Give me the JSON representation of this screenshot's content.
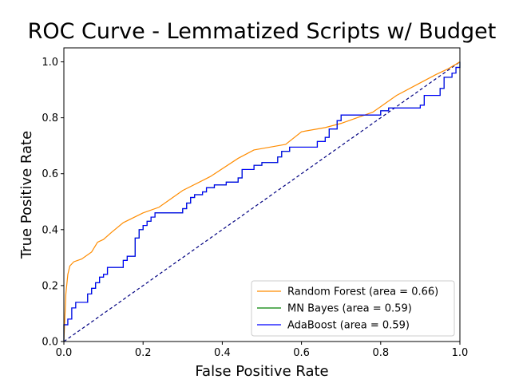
{
  "chart_data": {
    "type": "line",
    "title": "ROC Curve - Lemmatized Scripts w/ Budget",
    "xlabel": "False Positive Rate",
    "ylabel": "True Positive Rate",
    "xlim": [
      0.0,
      1.0
    ],
    "ylim": [
      0.0,
      1.05
    ],
    "xticks": [
      "0.0",
      "0.2",
      "0.4",
      "0.6",
      "0.8",
      "1.0"
    ],
    "yticks": [
      "0.0",
      "0.2",
      "0.4",
      "0.6",
      "0.8",
      "1.0"
    ],
    "grid": false,
    "legend_position": "lower-right",
    "diagonal": {
      "color": "#000080",
      "style": "dashed",
      "points": [
        [
          0,
          0
        ],
        [
          1,
          1
        ]
      ]
    },
    "series": [
      {
        "name": "Random Forest (area = 0.66)",
        "color": "#ff8c00",
        "step": false,
        "points": [
          [
            0.0,
            0.0
          ],
          [
            0.005,
            0.17
          ],
          [
            0.01,
            0.24
          ],
          [
            0.015,
            0.27
          ],
          [
            0.025,
            0.285
          ],
          [
            0.045,
            0.295
          ],
          [
            0.07,
            0.32
          ],
          [
            0.085,
            0.355
          ],
          [
            0.1,
            0.365
          ],
          [
            0.12,
            0.39
          ],
          [
            0.15,
            0.425
          ],
          [
            0.2,
            0.46
          ],
          [
            0.24,
            0.48
          ],
          [
            0.3,
            0.54
          ],
          [
            0.37,
            0.59
          ],
          [
            0.44,
            0.655
          ],
          [
            0.48,
            0.685
          ],
          [
            0.52,
            0.695
          ],
          [
            0.56,
            0.705
          ],
          [
            0.6,
            0.75
          ],
          [
            0.66,
            0.765
          ],
          [
            0.7,
            0.78
          ],
          [
            0.78,
            0.82
          ],
          [
            0.8,
            0.84
          ],
          [
            0.84,
            0.88
          ],
          [
            0.9,
            0.925
          ],
          [
            0.94,
            0.955
          ],
          [
            0.97,
            0.975
          ],
          [
            1.0,
            1.0
          ]
        ]
      },
      {
        "name": "MN Bayes (area = 0.59)",
        "color": "#008000",
        "step": true,
        "points": [
          [
            0.0,
            0.0
          ],
          [
            0.0,
            0.06
          ],
          [
            0.01,
            0.06
          ],
          [
            0.01,
            0.08
          ],
          [
            0.02,
            0.08
          ],
          [
            0.02,
            0.12
          ],
          [
            0.03,
            0.12
          ],
          [
            0.03,
            0.14
          ],
          [
            0.06,
            0.14
          ],
          [
            0.06,
            0.17
          ],
          [
            0.07,
            0.17
          ],
          [
            0.07,
            0.19
          ],
          [
            0.08,
            0.19
          ],
          [
            0.08,
            0.21
          ],
          [
            0.09,
            0.21
          ],
          [
            0.09,
            0.23
          ],
          [
            0.1,
            0.23
          ],
          [
            0.1,
            0.24
          ],
          [
            0.11,
            0.24
          ],
          [
            0.11,
            0.265
          ],
          [
            0.15,
            0.265
          ],
          [
            0.15,
            0.29
          ],
          [
            0.16,
            0.29
          ],
          [
            0.16,
            0.305
          ],
          [
            0.18,
            0.305
          ],
          [
            0.18,
            0.37
          ],
          [
            0.19,
            0.37
          ],
          [
            0.19,
            0.4
          ],
          [
            0.2,
            0.4
          ],
          [
            0.2,
            0.415
          ],
          [
            0.21,
            0.415
          ],
          [
            0.21,
            0.43
          ],
          [
            0.22,
            0.43
          ],
          [
            0.22,
            0.445
          ],
          [
            0.23,
            0.445
          ],
          [
            0.23,
            0.46
          ],
          [
            0.3,
            0.46
          ],
          [
            0.3,
            0.475
          ],
          [
            0.31,
            0.475
          ],
          [
            0.31,
            0.495
          ],
          [
            0.32,
            0.495
          ],
          [
            0.32,
            0.515
          ],
          [
            0.33,
            0.515
          ],
          [
            0.33,
            0.525
          ],
          [
            0.35,
            0.525
          ],
          [
            0.35,
            0.535
          ],
          [
            0.36,
            0.535
          ],
          [
            0.36,
            0.55
          ],
          [
            0.38,
            0.55
          ],
          [
            0.38,
            0.56
          ],
          [
            0.41,
            0.56
          ],
          [
            0.41,
            0.57
          ],
          [
            0.44,
            0.57
          ],
          [
            0.44,
            0.585
          ],
          [
            0.45,
            0.585
          ],
          [
            0.45,
            0.615
          ],
          [
            0.48,
            0.615
          ],
          [
            0.48,
            0.63
          ],
          [
            0.5,
            0.63
          ],
          [
            0.5,
            0.64
          ],
          [
            0.54,
            0.64
          ],
          [
            0.54,
            0.66
          ],
          [
            0.55,
            0.66
          ],
          [
            0.55,
            0.68
          ],
          [
            0.57,
            0.68
          ],
          [
            0.57,
            0.695
          ],
          [
            0.64,
            0.695
          ],
          [
            0.64,
            0.715
          ],
          [
            0.66,
            0.715
          ],
          [
            0.66,
            0.73
          ],
          [
            0.67,
            0.73
          ],
          [
            0.67,
            0.76
          ],
          [
            0.69,
            0.76
          ],
          [
            0.69,
            0.79
          ],
          [
            0.7,
            0.79
          ],
          [
            0.7,
            0.81
          ],
          [
            0.8,
            0.81
          ],
          [
            0.8,
            0.825
          ],
          [
            0.82,
            0.825
          ],
          [
            0.82,
            0.835
          ],
          [
            0.9,
            0.835
          ],
          [
            0.9,
            0.845
          ],
          [
            0.91,
            0.845
          ],
          [
            0.91,
            0.88
          ],
          [
            0.95,
            0.88
          ],
          [
            0.95,
            0.905
          ],
          [
            0.96,
            0.905
          ],
          [
            0.96,
            0.945
          ],
          [
            0.98,
            0.945
          ],
          [
            0.98,
            0.96
          ],
          [
            0.99,
            0.96
          ],
          [
            0.99,
            0.98
          ],
          [
            1.0,
            0.98
          ],
          [
            1.0,
            1.0
          ]
        ]
      },
      {
        "name": "AdaBoost (area = 0.59)",
        "color": "#0000ff",
        "step": true,
        "points": [
          [
            0.0,
            0.0
          ],
          [
            0.0,
            0.06
          ],
          [
            0.01,
            0.06
          ],
          [
            0.01,
            0.08
          ],
          [
            0.02,
            0.08
          ],
          [
            0.02,
            0.12
          ],
          [
            0.03,
            0.12
          ],
          [
            0.03,
            0.14
          ],
          [
            0.06,
            0.14
          ],
          [
            0.06,
            0.17
          ],
          [
            0.07,
            0.17
          ],
          [
            0.07,
            0.19
          ],
          [
            0.08,
            0.19
          ],
          [
            0.08,
            0.21
          ],
          [
            0.09,
            0.21
          ],
          [
            0.09,
            0.23
          ],
          [
            0.1,
            0.23
          ],
          [
            0.1,
            0.24
          ],
          [
            0.11,
            0.24
          ],
          [
            0.11,
            0.265
          ],
          [
            0.15,
            0.265
          ],
          [
            0.15,
            0.29
          ],
          [
            0.16,
            0.29
          ],
          [
            0.16,
            0.305
          ],
          [
            0.18,
            0.305
          ],
          [
            0.18,
            0.37
          ],
          [
            0.19,
            0.37
          ],
          [
            0.19,
            0.4
          ],
          [
            0.2,
            0.4
          ],
          [
            0.2,
            0.415
          ],
          [
            0.21,
            0.415
          ],
          [
            0.21,
            0.43
          ],
          [
            0.22,
            0.43
          ],
          [
            0.22,
            0.445
          ],
          [
            0.23,
            0.445
          ],
          [
            0.23,
            0.46
          ],
          [
            0.3,
            0.46
          ],
          [
            0.3,
            0.475
          ],
          [
            0.31,
            0.475
          ],
          [
            0.31,
            0.495
          ],
          [
            0.32,
            0.495
          ],
          [
            0.32,
            0.515
          ],
          [
            0.33,
            0.515
          ],
          [
            0.33,
            0.525
          ],
          [
            0.35,
            0.525
          ],
          [
            0.35,
            0.535
          ],
          [
            0.36,
            0.535
          ],
          [
            0.36,
            0.55
          ],
          [
            0.38,
            0.55
          ],
          [
            0.38,
            0.56
          ],
          [
            0.41,
            0.56
          ],
          [
            0.41,
            0.57
          ],
          [
            0.44,
            0.57
          ],
          [
            0.44,
            0.585
          ],
          [
            0.45,
            0.585
          ],
          [
            0.45,
            0.615
          ],
          [
            0.48,
            0.615
          ],
          [
            0.48,
            0.63
          ],
          [
            0.5,
            0.63
          ],
          [
            0.5,
            0.64
          ],
          [
            0.54,
            0.64
          ],
          [
            0.54,
            0.66
          ],
          [
            0.55,
            0.66
          ],
          [
            0.55,
            0.68
          ],
          [
            0.57,
            0.68
          ],
          [
            0.57,
            0.695
          ],
          [
            0.64,
            0.695
          ],
          [
            0.64,
            0.715
          ],
          [
            0.66,
            0.715
          ],
          [
            0.66,
            0.73
          ],
          [
            0.67,
            0.73
          ],
          [
            0.67,
            0.76
          ],
          [
            0.69,
            0.76
          ],
          [
            0.69,
            0.79
          ],
          [
            0.7,
            0.79
          ],
          [
            0.7,
            0.81
          ],
          [
            0.8,
            0.81
          ],
          [
            0.8,
            0.825
          ],
          [
            0.82,
            0.825
          ],
          [
            0.82,
            0.835
          ],
          [
            0.9,
            0.835
          ],
          [
            0.9,
            0.845
          ],
          [
            0.91,
            0.845
          ],
          [
            0.91,
            0.88
          ],
          [
            0.95,
            0.88
          ],
          [
            0.95,
            0.905
          ],
          [
            0.96,
            0.905
          ],
          [
            0.96,
            0.945
          ],
          [
            0.98,
            0.945
          ],
          [
            0.98,
            0.96
          ],
          [
            0.99,
            0.96
          ],
          [
            0.99,
            0.98
          ],
          [
            1.0,
            0.98
          ],
          [
            1.0,
            1.0
          ]
        ]
      }
    ]
  }
}
